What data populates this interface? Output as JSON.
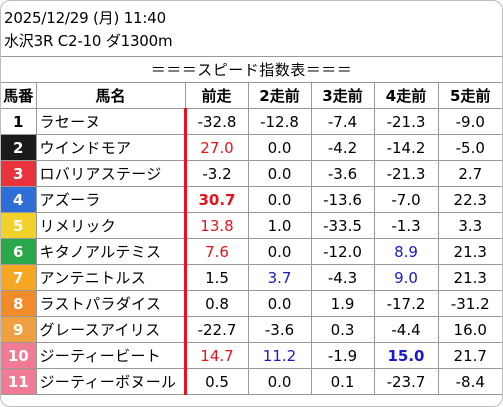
{
  "header": {
    "line1": "2025/12/29 (月) 11:40",
    "line2": "水沢3R C2-10 ダ1300m"
  },
  "table_title": "＝＝＝スピード指数表＝＝＝",
  "columns": [
    "馬番",
    "馬名",
    "前走",
    "2走前",
    "3走前",
    "4走前",
    "5走前"
  ],
  "rows": [
    {
      "num": "1",
      "name": "ラセーヌ",
      "bg": "#ffffff",
      "fg": "#000000",
      "v": [
        "-32.8",
        "-12.8",
        "-7.4",
        "-21.3",
        "-9.0"
      ],
      "s": [
        "",
        "",
        "",
        "",
        ""
      ]
    },
    {
      "num": "2",
      "name": "ウインドモア",
      "bg": "#1a1a1a",
      "fg": "#ffffff",
      "v": [
        "27.0",
        "0.0",
        "-4.2",
        "-14.2",
        "-5.0"
      ],
      "s": [
        "red",
        "",
        "",
        "",
        ""
      ]
    },
    {
      "num": "3",
      "name": "ロバリアステージ",
      "bg": "#e8333c",
      "fg": "#ffffff",
      "v": [
        "-3.2",
        "0.0",
        "-3.6",
        "-21.3",
        "2.7"
      ],
      "s": [
        "",
        "",
        "",
        "",
        ""
      ]
    },
    {
      "num": "4",
      "name": "アズーラ",
      "bg": "#2d6fd6",
      "fg": "#ffffff",
      "v": [
        "30.7",
        "0.0",
        "-13.6",
        "-7.0",
        "22.3"
      ],
      "s": [
        "red-b",
        "",
        "",
        "",
        ""
      ]
    },
    {
      "num": "5",
      "name": "リメリック",
      "bg": "#f2d22a",
      "fg": "#ffffff",
      "v": [
        "13.8",
        "1.0",
        "-33.5",
        "-1.3",
        "3.3"
      ],
      "s": [
        "red",
        "",
        "",
        "",
        ""
      ]
    },
    {
      "num": "6",
      "name": "キタノアルテミス",
      "bg": "#2aa84a",
      "fg": "#ffffff",
      "v": [
        "7.6",
        "0.0",
        "-12.0",
        "8.9",
        "21.3"
      ],
      "s": [
        "red",
        "",
        "",
        "blue",
        ""
      ]
    },
    {
      "num": "7",
      "name": "アンテニトルス",
      "bg": "#f5a623",
      "fg": "#ffffff",
      "v": [
        "1.5",
        "3.7",
        "-4.3",
        "9.0",
        "21.3"
      ],
      "s": [
        "",
        "blue",
        "",
        "blue",
        ""
      ]
    },
    {
      "num": "8",
      "name": "ラストパラダイス",
      "bg": "#f28c28",
      "fg": "#ffffff",
      "v": [
        "0.8",
        "0.0",
        "1.9",
        "-17.2",
        "-31.2"
      ],
      "s": [
        "",
        "",
        "",
        "",
        ""
      ]
    },
    {
      "num": "9",
      "name": "グレースアイリス",
      "bg": "#f0a040",
      "fg": "#ffffff",
      "v": [
        "-22.7",
        "-3.6",
        "0.3",
        "-4.4",
        "16.0"
      ],
      "s": [
        "",
        "",
        "",
        "",
        ""
      ]
    },
    {
      "num": "10",
      "name": "ジーティービート",
      "bg": "#f07b95",
      "fg": "#ffffff",
      "v": [
        "14.7",
        "11.2",
        "-1.9",
        "15.0",
        "21.7"
      ],
      "s": [
        "red",
        "blue",
        "",
        "blue-b",
        ""
      ]
    },
    {
      "num": "11",
      "name": "ジーティーボヌール",
      "bg": "#f07b95",
      "fg": "#ffffff",
      "v": [
        "0.5",
        "0.0",
        "0.1",
        "-23.7",
        "-8.4"
      ],
      "s": [
        "",
        "",
        "",
        "",
        ""
      ]
    }
  ]
}
